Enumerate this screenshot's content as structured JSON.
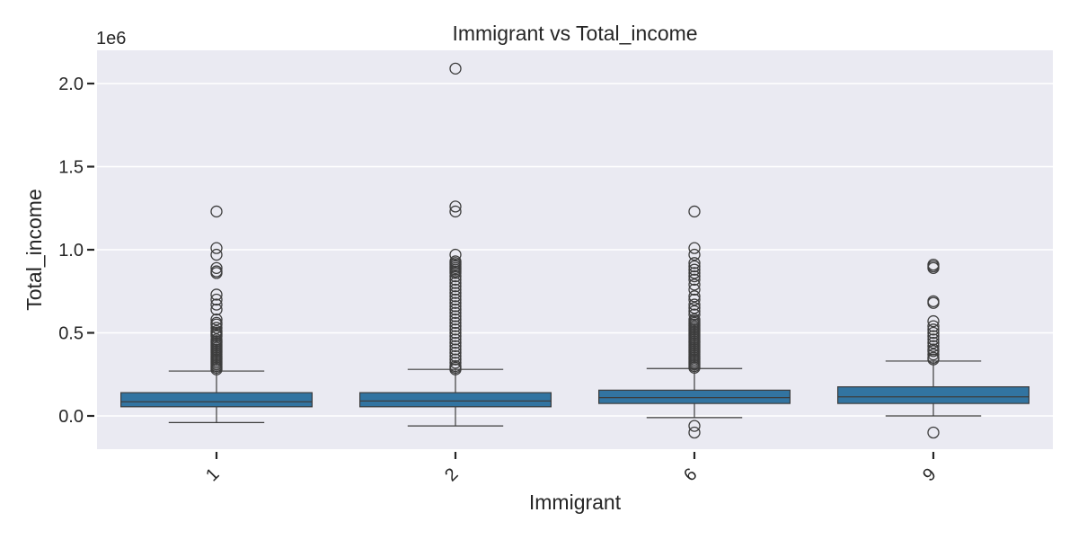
{
  "chart_data": {
    "type": "box",
    "title": "Immigrant vs Total_income",
    "xlabel": "Immigrant",
    "ylabel": "Total_income",
    "y_offset_label": "1e6",
    "ylim": [
      -0.2,
      2.2
    ],
    "yticks": [
      0.0,
      0.5,
      1.0,
      1.5,
      2.0
    ],
    "ytick_labels": [
      "0.0",
      "0.5",
      "1.0",
      "1.5",
      "2.0"
    ],
    "grid": true,
    "colors": {
      "box_fill": "#3274a1",
      "axes_bg": "#eaeaf2",
      "grid": "#ffffff",
      "edge": "#3d3d3d"
    },
    "categories": [
      "1",
      "2",
      "6",
      "9"
    ],
    "boxes": [
      {
        "category": "1",
        "whisker_low": -0.04,
        "q1": 0.055,
        "median": 0.085,
        "q3": 0.14,
        "whisker_high": 0.27,
        "outliers": [
          1.23,
          1.01,
          0.97,
          0.89,
          0.87,
          0.86,
          0.73,
          0.7,
          0.67,
          0.64,
          0.58,
          0.56,
          0.55,
          0.53,
          0.51,
          0.5,
          0.49,
          0.48,
          0.46,
          0.45,
          0.44,
          0.43,
          0.42,
          0.41,
          0.4,
          0.39,
          0.38,
          0.37,
          0.36,
          0.35,
          0.34,
          0.33,
          0.32,
          0.31,
          0.3,
          0.29,
          0.28
        ]
      },
      {
        "category": "2",
        "whisker_low": -0.06,
        "q1": 0.055,
        "median": 0.09,
        "q3": 0.14,
        "whisker_high": 0.28,
        "outliers": [
          2.09,
          1.26,
          1.23,
          0.97,
          0.93,
          0.92,
          0.91,
          0.9,
          0.89,
          0.88,
          0.87,
          0.86,
          0.84,
          0.82,
          0.8,
          0.78,
          0.76,
          0.74,
          0.72,
          0.7,
          0.68,
          0.66,
          0.64,
          0.62,
          0.6,
          0.58,
          0.56,
          0.54,
          0.52,
          0.5,
          0.48,
          0.46,
          0.44,
          0.42,
          0.4,
          0.38,
          0.36,
          0.34,
          0.32,
          0.3,
          0.29,
          0.28
        ]
      },
      {
        "category": "6",
        "whisker_low": -0.01,
        "q1": 0.075,
        "median": 0.11,
        "q3": 0.155,
        "whisker_high": 0.285,
        "outliers": [
          1.23,
          1.01,
          0.97,
          0.92,
          0.9,
          0.88,
          0.86,
          0.84,
          0.82,
          0.79,
          0.76,
          0.72,
          0.7,
          0.67,
          0.65,
          0.63,
          0.61,
          0.58,
          0.57,
          0.56,
          0.55,
          0.54,
          0.53,
          0.52,
          0.51,
          0.5,
          0.49,
          0.48,
          0.47,
          0.46,
          0.45,
          0.44,
          0.43,
          0.42,
          0.41,
          0.4,
          0.39,
          0.38,
          0.37,
          0.36,
          0.35,
          0.34,
          0.33,
          0.32,
          0.31,
          0.3,
          0.29,
          -0.06,
          -0.1
        ]
      },
      {
        "category": "9",
        "whisker_low": 0.0,
        "q1": 0.075,
        "median": 0.115,
        "q3": 0.175,
        "whisker_high": 0.33,
        "outliers": [
          0.91,
          0.9,
          0.89,
          0.69,
          0.68,
          0.57,
          0.54,
          0.52,
          0.5,
          0.48,
          0.46,
          0.44,
          0.42,
          0.4,
          0.39,
          0.37,
          0.35,
          0.34,
          -0.1
        ]
      }
    ]
  }
}
